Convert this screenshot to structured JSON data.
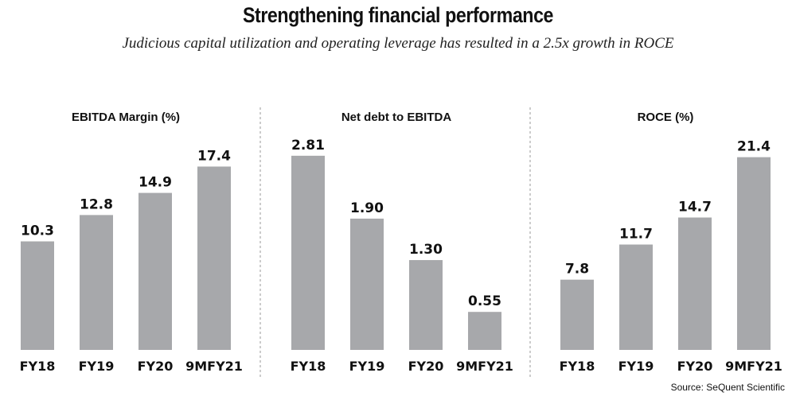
{
  "title": "Strengthening financial performance",
  "subtitle": "Judicious capital utilization and operating leverage has resulted in a 2.5x growth in ROCE",
  "source": "Source: SeQuent Scientific",
  "colors": {
    "bar": "#a7a8ab",
    "text": "#111111",
    "divider": "#9a9a9a"
  },
  "chart_data": [
    {
      "type": "bar",
      "title": "EBITDA Margin (%)",
      "categories": [
        "FY18",
        "FY19",
        "FY20",
        "9MFY21"
      ],
      "values": [
        10.3,
        12.8,
        14.9,
        17.4
      ],
      "value_labels": [
        "10.3",
        "12.8",
        "14.9",
        "17.4"
      ],
      "ylim": [
        0,
        20
      ]
    },
    {
      "type": "bar",
      "title": "Net debt to EBITDA",
      "categories": [
        "FY18",
        "FY19",
        "FY20",
        "9MFY21"
      ],
      "values": [
        2.81,
        1.9,
        1.3,
        0.55
      ],
      "value_labels": [
        "2.81",
        "1.90",
        "1.30",
        "0.55"
      ],
      "ylim": [
        0,
        3.05
      ]
    },
    {
      "type": "bar",
      "title": "ROCE (%)",
      "categories": [
        "FY18",
        "FY19",
        "FY20",
        "9MFY21"
      ],
      "values": [
        7.8,
        11.7,
        14.7,
        21.4
      ],
      "value_labels": [
        "7.8",
        "11.7",
        "14.7",
        "21.4"
      ],
      "ylim": [
        0,
        23.4
      ]
    }
  ]
}
